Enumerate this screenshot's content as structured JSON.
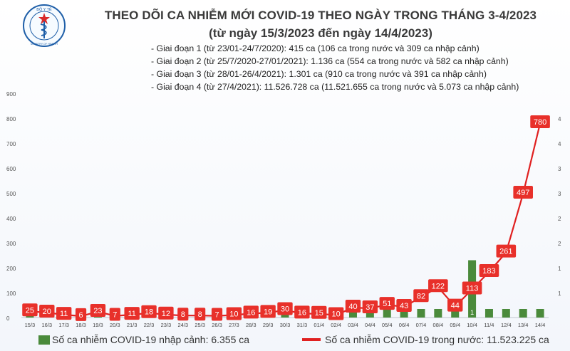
{
  "header": {
    "logo_text_top": "BỘ Y TẾ",
    "logo_text_bottom": "MINISTRY OF HEALTH",
    "title": "THEO DÕI CA NHIỄM MỚI COVID-19 THEO NGÀY TRONG THÁNG 3-4/2023",
    "subtitle": "(từ ngày 15/3/2023 đến ngày 14/4/2023)"
  },
  "stages": [
    "- Giai đoạn 1 (từ 23/01-24/7/2020): 415 ca (106 ca trong nước và 309 ca nhập cảnh)",
    "- Giai đoạn 2 (từ 25/7/2020-27/01/2021): 1.136 ca (554 ca trong nước và 582 ca nhập cảnh)",
    "- Giai đoạn 3 (từ 28/01-26/4/2021): 1.301 ca (910 ca trong nước và 391 ca nhập cảnh)",
    "- Giai đoạn 4 (từ 27/4/2021): 11.526.728 ca (11.521.655 ca trong nước và 5.073 ca nhập cảnh)"
  ],
  "legend": {
    "bar_label": "Số ca nhiễm COVID-19 nhập cảnh: 6.355 ca",
    "line_label": "Số ca nhiễm COVID-19 trong nước: 11.523.225 ca"
  },
  "colors": {
    "bar": "#4a8a3b",
    "line": "#e02020",
    "label_box": "#e8302a"
  },
  "chart_data": {
    "type": "bar+line",
    "categories": [
      "15/3",
      "16/3",
      "17/3",
      "18/3",
      "19/3",
      "20/3",
      "21/3",
      "22/3",
      "23/3",
      "24/3",
      "25/3",
      "26/3",
      "27/3",
      "28/3",
      "29/3",
      "30/3",
      "31/3",
      "01/4",
      "02/4",
      "03/4",
      "04/4",
      "05/4",
      "06/4",
      "07/4",
      "08/4",
      "09/4",
      "10/4",
      "11/4",
      "12/4",
      "13/4",
      "14/4"
    ],
    "left_axis": {
      "min": 0,
      "max": 900,
      "ticks": [
        0,
        100,
        200,
        300,
        400,
        500,
        600,
        700,
        800,
        900
      ]
    },
    "right_axis": {
      "min": 0,
      "max": 4.5,
      "ticks": [
        "1",
        "1",
        "2",
        "2",
        "3",
        "3",
        "4",
        "4"
      ]
    },
    "series": [
      {
        "name": "Số ca nhiễm COVID-19 trong nước",
        "type": "line",
        "axis": "left",
        "values": [
          25,
          20,
          11,
          6,
          23,
          7,
          11,
          18,
          12,
          8,
          8,
          7,
          10,
          16,
          19,
          30,
          16,
          15,
          10,
          40,
          37,
          51,
          43,
          82,
          122,
          44,
          113,
          183,
          261,
          497,
          780
        ]
      },
      {
        "name": "Số ca nhiễm COVID-19 nhập cảnh",
        "type": "bar",
        "axis": "right",
        "values": [
          0,
          0,
          0,
          0,
          0,
          0,
          0,
          0,
          0,
          0,
          0,
          0,
          0,
          0,
          0,
          0,
          0,
          0,
          0,
          0,
          0,
          0,
          0,
          0,
          0,
          0,
          1,
          0,
          0,
          0,
          0
        ],
        "labels": {
          "26": "1"
        }
      }
    ]
  }
}
